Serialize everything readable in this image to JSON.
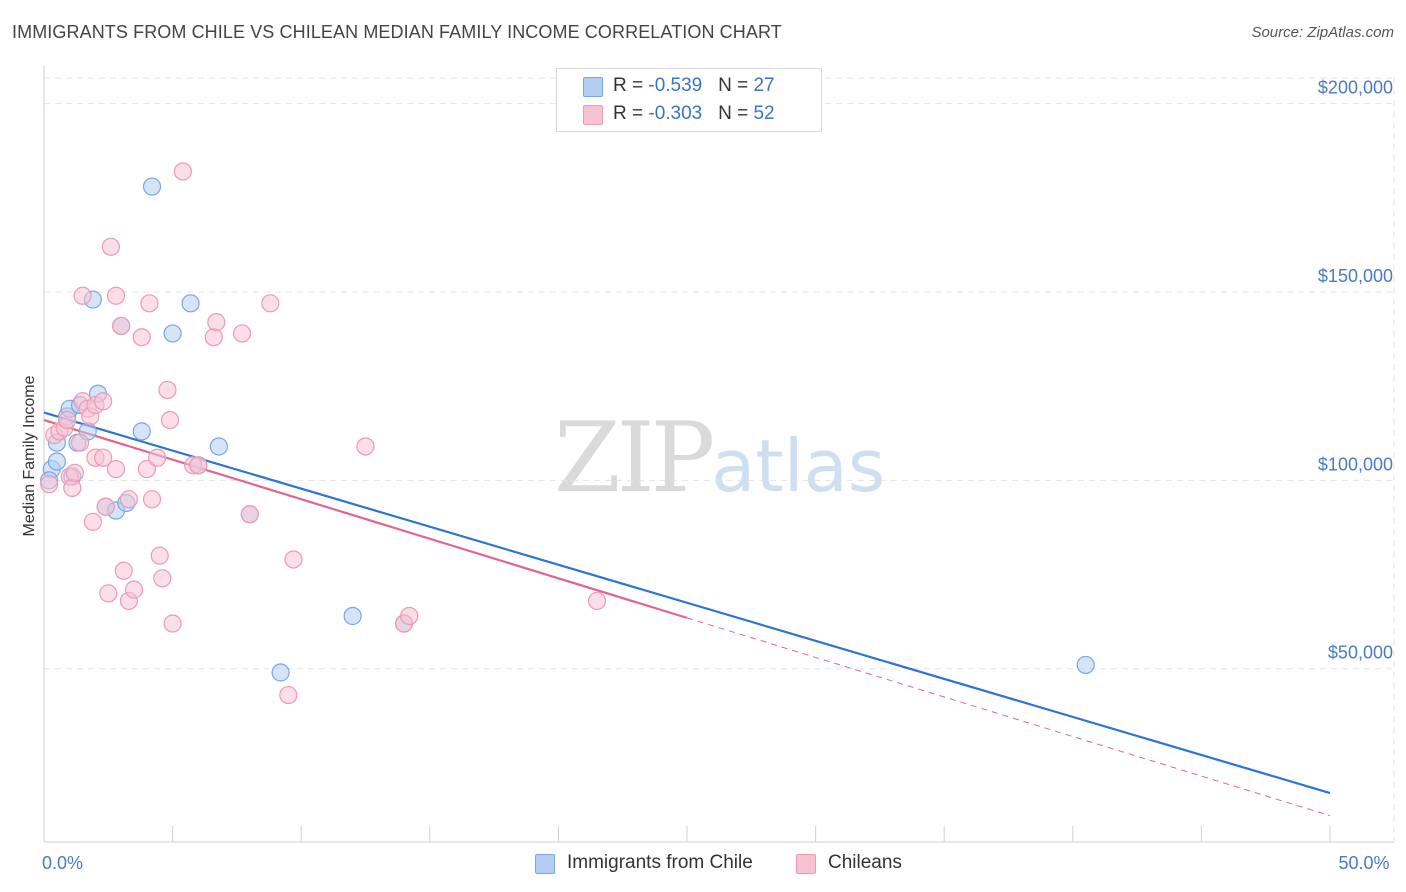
{
  "header": {
    "title": "IMMIGRANTS FROM CHILE VS CHILEAN MEDIAN FAMILY INCOME CORRELATION CHART",
    "source": "Source: ZipAtlas.com"
  },
  "watermark": {
    "zip": "ZIP",
    "atlas": "atlas"
  },
  "legend_top": [
    {
      "r_label": "R = ",
      "r_value": "-0.539",
      "n_label": "N = ",
      "n_value": "27"
    },
    {
      "r_label": "R = ",
      "r_value": "-0.303",
      "n_label": "N = ",
      "n_value": "52"
    }
  ],
  "colors": {
    "blue_fill": "#b4cdf3",
    "blue_stroke": "#7aa6e6",
    "blue_line": "#2f74d0",
    "pink_fill": "#f7c3d3",
    "pink_stroke": "#ec9ab4",
    "pink_line": "#e0658f",
    "grid": "#e3e3e3",
    "tick_text": "#4a7bc8"
  },
  "chart_data": {
    "type": "scatter",
    "title": "IMMIGRANTS FROM CHILE VS CHILEAN MEDIAN FAMILY INCOME CORRELATION CHART",
    "xlabel": "",
    "ylabel": "Median Family Income",
    "xlim": [
      0,
      50
    ],
    "ylim": [
      4000,
      210000
    ],
    "x_tick_labels": [
      {
        "value": 0,
        "label": "0.0%"
      },
      {
        "value": 50,
        "label": "50.0%"
      }
    ],
    "y_ticks": [
      {
        "value": 50000,
        "label": "$50,000"
      },
      {
        "value": 100000,
        "label": "$100,000"
      },
      {
        "value": 150000,
        "label": "$150,000"
      },
      {
        "value": 200000,
        "label": "$200,000"
      }
    ],
    "grid": true,
    "legend_position": "bottom",
    "series": [
      {
        "name": "Immigrants from Chile",
        "color": "#7aa6e6",
        "points": [
          [
            0.3,
            103000
          ],
          [
            0.5,
            110000
          ],
          [
            0.5,
            105000
          ],
          [
            0.9,
            117000
          ],
          [
            1.0,
            119000
          ],
          [
            1.1,
            101000
          ],
          [
            1.3,
            110000
          ],
          [
            1.4,
            120000
          ],
          [
            1.7,
            113000
          ],
          [
            1.9,
            148000
          ],
          [
            2.1,
            123000
          ],
          [
            2.4,
            93000
          ],
          [
            2.8,
            92000
          ],
          [
            3.0,
            141000
          ],
          [
            3.2,
            94000
          ],
          [
            3.8,
            113000
          ],
          [
            4.2,
            178000
          ],
          [
            5.0,
            139000
          ],
          [
            5.7,
            147000
          ],
          [
            6.0,
            104000
          ],
          [
            6.8,
            109000
          ],
          [
            8.0,
            91000
          ],
          [
            9.2,
            49000
          ],
          [
            12.0,
            64000
          ],
          [
            14.0,
            62000
          ],
          [
            40.5,
            51000
          ],
          [
            0.2,
            100000
          ]
        ]
      },
      {
        "name": "Chileans",
        "color": "#ec9ab4",
        "points": [
          [
            0.2,
            99000
          ],
          [
            0.4,
            112000
          ],
          [
            0.6,
            113000
          ],
          [
            0.8,
            114000
          ],
          [
            0.9,
            116000
          ],
          [
            1.0,
            101000
          ],
          [
            1.1,
            98000
          ],
          [
            1.2,
            102000
          ],
          [
            1.4,
            110000
          ],
          [
            1.5,
            121000
          ],
          [
            1.5,
            149000
          ],
          [
            1.7,
            119000
          ],
          [
            1.8,
            117000
          ],
          [
            1.9,
            89000
          ],
          [
            2.0,
            106000
          ],
          [
            2.0,
            120000
          ],
          [
            2.3,
            106000
          ],
          [
            2.3,
            121000
          ],
          [
            2.4,
            93000
          ],
          [
            2.5,
            70000
          ],
          [
            2.6,
            162000
          ],
          [
            2.8,
            103000
          ],
          [
            2.8,
            149000
          ],
          [
            3.0,
            141000
          ],
          [
            3.1,
            76000
          ],
          [
            3.3,
            95000
          ],
          [
            3.3,
            68000
          ],
          [
            3.5,
            71000
          ],
          [
            3.8,
            138000
          ],
          [
            4.0,
            103000
          ],
          [
            4.1,
            147000
          ],
          [
            4.2,
            95000
          ],
          [
            4.4,
            106000
          ],
          [
            4.5,
            80000
          ],
          [
            4.6,
            74000
          ],
          [
            4.8,
            124000
          ],
          [
            4.9,
            116000
          ],
          [
            5.0,
            62000
          ],
          [
            5.4,
            182000
          ],
          [
            5.8,
            104000
          ],
          [
            6.0,
            104000
          ],
          [
            6.6,
            138000
          ],
          [
            6.7,
            142000
          ],
          [
            7.7,
            139000
          ],
          [
            8.0,
            91000
          ],
          [
            8.8,
            147000
          ],
          [
            9.5,
            43000
          ],
          [
            9.7,
            79000
          ],
          [
            12.5,
            109000
          ],
          [
            14.0,
            62000
          ],
          [
            14.2,
            64000
          ],
          [
            21.5,
            68000
          ]
        ]
      }
    ],
    "trend_lines": [
      {
        "series": "Immigrants from Chile",
        "x": [
          0,
          50
        ],
        "y": [
          118000,
          17000
        ],
        "style": "solid"
      },
      {
        "series": "Chileans",
        "x": [
          0,
          25
        ],
        "y": [
          116000,
          63500
        ],
        "style": "solid"
      },
      {
        "series": "Chileans",
        "x": [
          25,
          50
        ],
        "y": [
          63500,
          11000
        ],
        "style": "dashed"
      }
    ]
  }
}
